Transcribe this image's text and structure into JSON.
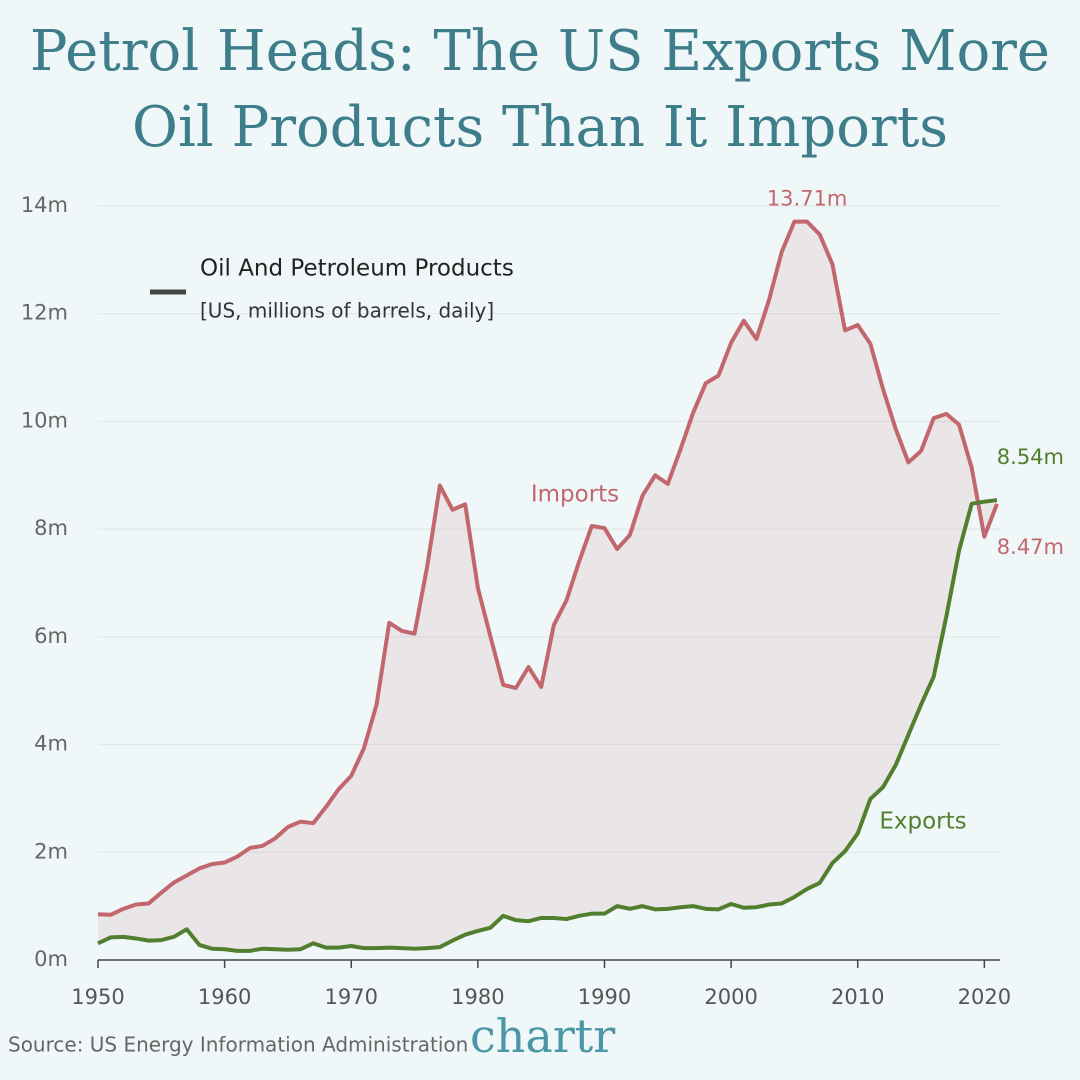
{
  "chart_data": {
    "type": "line",
    "title": "Petrol Heads: The US Exports More Oil Products Than It Imports",
    "legend_title": "Oil And Petroleum Products",
    "legend_subtitle": "[US, millions of barrels, daily]",
    "source": "Source: US Energy Information Administration",
    "brand": "chartr",
    "x": [
      1950,
      1951,
      1952,
      1953,
      1954,
      1955,
      1956,
      1957,
      1958,
      1959,
      1960,
      1961,
      1962,
      1963,
      1964,
      1965,
      1966,
      1967,
      1968,
      1969,
      1970,
      1971,
      1972,
      1973,
      1974,
      1975,
      1976,
      1977,
      1978,
      1979,
      1980,
      1981,
      1982,
      1983,
      1984,
      1985,
      1986,
      1987,
      1988,
      1989,
      1990,
      1991,
      1992,
      1993,
      1994,
      1995,
      1996,
      1997,
      1998,
      1999,
      2000,
      2001,
      2002,
      2003,
      2004,
      2005,
      2006,
      2007,
      2008,
      2009,
      2010,
      2011,
      2012,
      2013,
      2014,
      2015,
      2016,
      2017,
      2018,
      2019,
      2020,
      2021
    ],
    "series": [
      {
        "name": "Imports",
        "color": "#c2676e",
        "values": [
          0.85,
          0.84,
          0.95,
          1.03,
          1.05,
          1.25,
          1.44,
          1.57,
          1.7,
          1.78,
          1.81,
          1.92,
          2.08,
          2.12,
          2.26,
          2.47,
          2.57,
          2.54,
          2.84,
          3.17,
          3.42,
          3.93,
          4.74,
          6.26,
          6.11,
          6.06,
          7.31,
          8.81,
          8.36,
          8.46,
          6.91,
          6.0,
          5.11,
          5.05,
          5.44,
          5.07,
          6.22,
          6.68,
          7.4,
          8.06,
          8.02,
          7.63,
          7.89,
          8.62,
          9.0,
          8.84,
          9.48,
          10.16,
          10.71,
          10.85,
          11.46,
          11.87,
          11.53,
          12.26,
          13.15,
          13.71,
          13.71,
          13.47,
          12.92,
          11.69,
          11.79,
          11.44,
          10.6,
          9.86,
          9.24,
          9.45,
          10.06,
          10.14,
          9.94,
          9.14,
          7.86,
          8.47
        ],
        "value_labels": [
          null,
          null,
          null,
          null,
          null,
          null,
          null,
          null,
          null,
          null,
          null,
          null,
          null,
          null,
          null,
          null,
          null,
          null,
          null,
          null,
          null,
          null,
          null,
          null,
          null,
          null,
          null,
          null,
          null,
          null,
          null,
          null,
          null,
          null,
          null,
          null,
          null,
          null,
          null,
          null,
          null,
          null,
          null,
          null,
          null,
          null,
          null,
          null,
          null,
          null,
          null,
          null,
          null,
          null,
          null,
          null,
          "13.71m",
          null,
          null,
          null,
          null,
          null,
          null,
          null,
          null,
          null,
          null,
          null,
          null,
          null,
          null,
          "8.47m"
        ]
      },
      {
        "name": "Exports",
        "color": "#527f2e",
        "values": [
          0.31,
          0.42,
          0.43,
          0.4,
          0.36,
          0.37,
          0.43,
          0.57,
          0.28,
          0.21,
          0.2,
          0.17,
          0.17,
          0.21,
          0.2,
          0.19,
          0.2,
          0.31,
          0.23,
          0.23,
          0.26,
          0.22,
          0.22,
          0.23,
          0.22,
          0.21,
          0.22,
          0.24,
          0.36,
          0.47,
          0.54,
          0.6,
          0.82,
          0.74,
          0.72,
          0.78,
          0.78,
          0.76,
          0.82,
          0.86,
          0.86,
          1.0,
          0.95,
          1.0,
          0.94,
          0.95,
          0.98,
          1.0,
          0.95,
          0.94,
          1.04,
          0.97,
          0.98,
          1.03,
          1.05,
          1.17,
          1.32,
          1.43,
          1.8,
          2.02,
          2.35,
          2.99,
          3.21,
          3.62,
          4.18,
          4.74,
          5.26,
          6.38,
          7.6,
          8.47,
          8.51,
          8.54
        ],
        "value_labels": [
          null,
          null,
          null,
          null,
          null,
          null,
          null,
          null,
          null,
          null,
          null,
          null,
          null,
          null,
          null,
          null,
          null,
          null,
          null,
          null,
          null,
          null,
          null,
          null,
          null,
          null,
          null,
          null,
          null,
          null,
          null,
          null,
          null,
          null,
          null,
          null,
          null,
          null,
          null,
          null,
          null,
          null,
          null,
          null,
          null,
          null,
          null,
          null,
          null,
          null,
          null,
          null,
          null,
          null,
          null,
          null,
          null,
          null,
          null,
          null,
          null,
          null,
          null,
          null,
          null,
          null,
          null,
          null,
          null,
          null,
          null,
          "8.54m"
        ]
      }
    ],
    "xlim": [
      1950,
      2021
    ],
    "xticks": [
      1950,
      1960,
      1970,
      1980,
      1990,
      2000,
      2010,
      2020
    ],
    "ylim": [
      0,
      14
    ],
    "yticks": [
      {
        "value": 0,
        "label": "0m"
      },
      {
        "value": 2,
        "label": "2m"
      },
      {
        "value": 4,
        "label": "4m"
      },
      {
        "value": 6,
        "label": "6m"
      },
      {
        "value": 8,
        "label": "8m"
      },
      {
        "value": 10,
        "label": "10m"
      },
      {
        "value": 12,
        "label": "12m"
      },
      {
        "value": 14,
        "label": "14m"
      }
    ],
    "grid": true
  }
}
